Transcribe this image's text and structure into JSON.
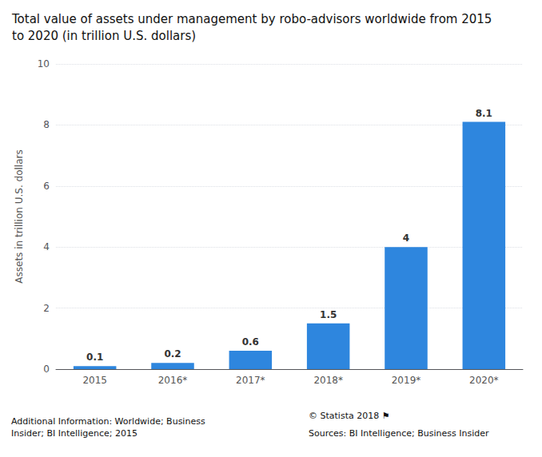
{
  "chart_data": {
    "type": "bar",
    "title": "Total value of assets under management by robo-advisors worldwide from 2015\nto 2020 (in trillion U.S. dollars)",
    "categories": [
      "2015",
      "2016*",
      "2017*",
      "2018*",
      "2019*",
      "2020*"
    ],
    "values": [
      0.1,
      0.2,
      0.6,
      1.5,
      4.0,
      8.1
    ],
    "color": "#2e86de",
    "ylabel": "Assets in trillion U.S. dollars",
    "ylim": [
      0,
      10
    ],
    "yticks": [
      0,
      2,
      4,
      6,
      8,
      10
    ],
    "grid": true,
    "data_labels": true,
    "annotations": [
      "Additional Information: Worldwide; Business\nInsider; BI Intelligence; 2015",
      "© Statista 2018 ⚑",
      "Sources: BI Intelligence; Business Insider"
    ]
  }
}
